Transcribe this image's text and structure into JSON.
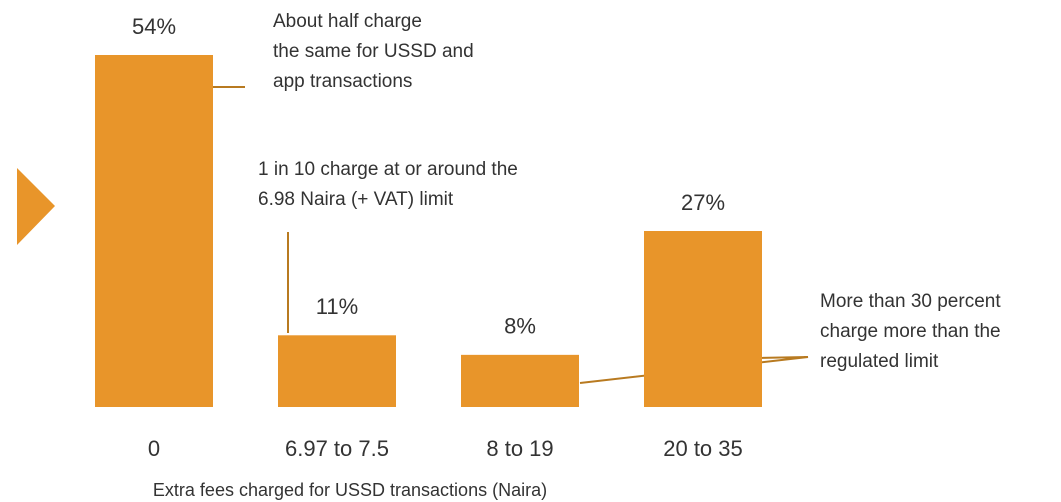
{
  "chart_data": {
    "type": "bar",
    "categories": [
      "0",
      "6.97 to 7.5",
      "8 to 19",
      "20 to 35"
    ],
    "values": [
      54,
      11,
      8,
      27
    ],
    "value_labels": [
      "54%",
      "11%",
      "8%",
      "27%"
    ],
    "color": "#e8952a",
    "xlabel": "Extra fees charged for USSD transactions (Naira)",
    "annotations": [
      {
        "lines": [
          "About half charge",
          "the same for USSD and",
          "app transactions"
        ]
      },
      {
        "lines": [
          "1 in 10 charge at or around the",
          "6.98 Naira (+ VAT) limit"
        ]
      },
      {
        "lines": [
          "More than 30 percent",
          "charge more than the",
          "regulated limit"
        ]
      }
    ]
  }
}
